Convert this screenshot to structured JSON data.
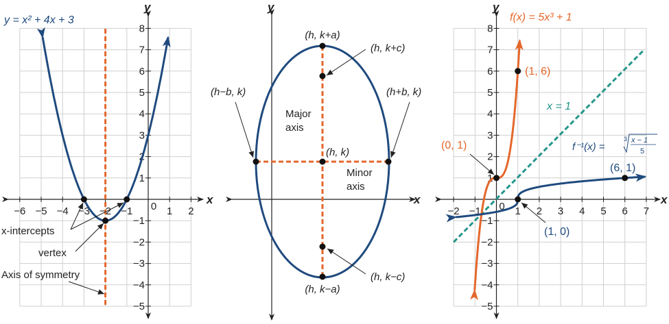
{
  "colors": {
    "blue": "#1f4a7e",
    "orange": "#e4672b",
    "teal": "#24958a",
    "grid": "#cfcfcf"
  },
  "panel1": {
    "equation": "y = x² + 4x + 3",
    "x_axis_label": "x",
    "y_axis_label": "y",
    "x_ticks": [
      "−6",
      "−5",
      "−4",
      "−3",
      "−2",
      "−1",
      "0",
      "1",
      "2"
    ],
    "y_ticks": [
      "8",
      "7",
      "6",
      "5",
      "4",
      "3",
      "2",
      "1",
      "−1",
      "−2",
      "−3",
      "−4",
      "−5"
    ],
    "x_intercepts_label": "x-intercepts",
    "vertex_label": "vertex",
    "axis_of_symmetry_label": "Axis of symmetry",
    "x_range": [
      -6,
      2
    ],
    "y_range": [
      -5,
      8
    ],
    "points": [
      [
        -3,
        0
      ],
      [
        -1,
        0
      ],
      [
        -2,
        -1
      ]
    ],
    "axis_of_symmetry_x": -2
  },
  "panel2": {
    "x_axis_label": "x",
    "y_axis_label": "y",
    "labels": {
      "top_vertex": "(h, k+a)",
      "top_focus": "(h, k+c)",
      "left_covertex": "(h−b, k)",
      "right_covertex": "(h+b, k)",
      "major_axis_1": "Major",
      "major_axis_2": "axis",
      "center": "(h, k)",
      "minor_axis_1": "Minor",
      "minor_axis_2": "axis",
      "bottom_focus": "(h, k−c)",
      "bottom_vertex": "(h, k−a)"
    }
  },
  "panel3": {
    "f_label": "f(x) = 5x³ + 1",
    "identity_label": "x = 1",
    "inverse_label_prefix": "f⁻¹(x) = ",
    "inverse_label_index": "3",
    "inverse_label_num": "x − 1",
    "inverse_label_den": "5",
    "x_axis_label": "x",
    "y_axis_label": "y",
    "x_ticks": [
      "−2",
      "−1",
      "0",
      "1",
      "2",
      "3",
      "4",
      "5",
      "6",
      "7"
    ],
    "y_ticks": [
      "8",
      "7",
      "6",
      "5",
      "4",
      "3",
      "2",
      "1",
      "−1",
      "−2",
      "−3",
      "−4",
      "−5"
    ],
    "point_labels": {
      "p01": "(0, 1)",
      "p16": "(1, 6)",
      "p61": "(6, 1)",
      "p10": "(1, 0)"
    },
    "x_range": [
      -2,
      7
    ],
    "y_range": [
      -5,
      8
    ]
  }
}
